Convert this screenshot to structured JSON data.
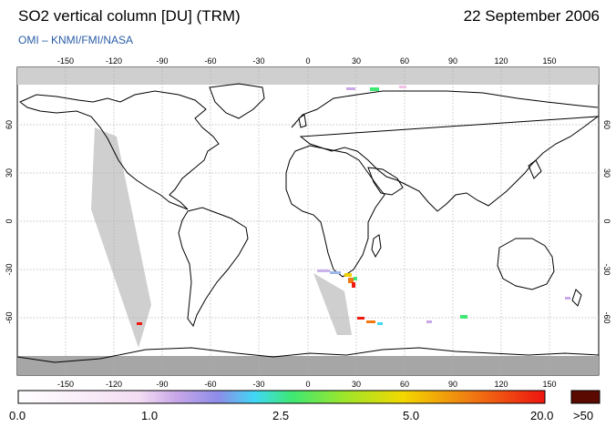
{
  "header": {
    "title": "SO2 vertical column [DU] (TRM)",
    "date": "22 September 2006",
    "credit": "OMI  –  KNMI/FMI/NASA"
  },
  "map": {
    "lon_ticks": [
      "-150",
      "-120",
      "-90",
      "-60",
      "-30",
      "0",
      "30",
      "60",
      "90",
      "120",
      "150"
    ],
    "lat_ticks": [
      "60",
      "30",
      "0",
      "-30",
      "-60"
    ]
  },
  "legend": {
    "labels": [
      "0.0",
      "1.0",
      "2.5",
      "5.0",
      "20.0"
    ],
    "overflow_label": ">50",
    "gradient_colors": [
      "#ffffff",
      "#f6e6f6",
      "#d9b8ea",
      "#8f8fe6",
      "#3fe3f0",
      "#3fe66e",
      "#a4e62a",
      "#f5d800",
      "#f07a10",
      "#ee1a10"
    ],
    "overflow_color": "#5a0a00"
  }
}
